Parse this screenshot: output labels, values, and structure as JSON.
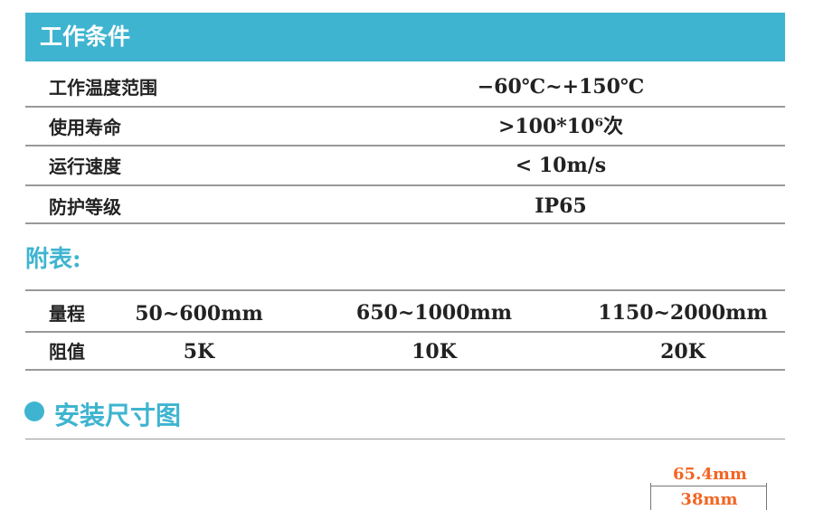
{
  "header": {
    "title": "工作条件"
  },
  "conditions": [
    {
      "label": "工作温度范围",
      "value": "−60℃~+150℃"
    },
    {
      "label": "使用寿命",
      "value": ">100*10⁶次"
    },
    {
      "label": "运行速度",
      "value": "< 10m/s"
    },
    {
      "label": "防护等级",
      "value": "IP65"
    }
  ],
  "appendix": {
    "title": "附表:",
    "rows": [
      {
        "label": "量程",
        "cells": [
          "50~600mm",
          "650~1000mm",
          "1150~2000mm"
        ]
      },
      {
        "label": "阻值",
        "cells": [
          "5K",
          "10K",
          "20K"
        ]
      }
    ]
  },
  "install": {
    "title": "安装尺寸图",
    "dim_outer": "65.4mm",
    "dim_inner": "38mm"
  },
  "colors": {
    "accent": "#3fb4d0",
    "dimension": "#f26522"
  }
}
